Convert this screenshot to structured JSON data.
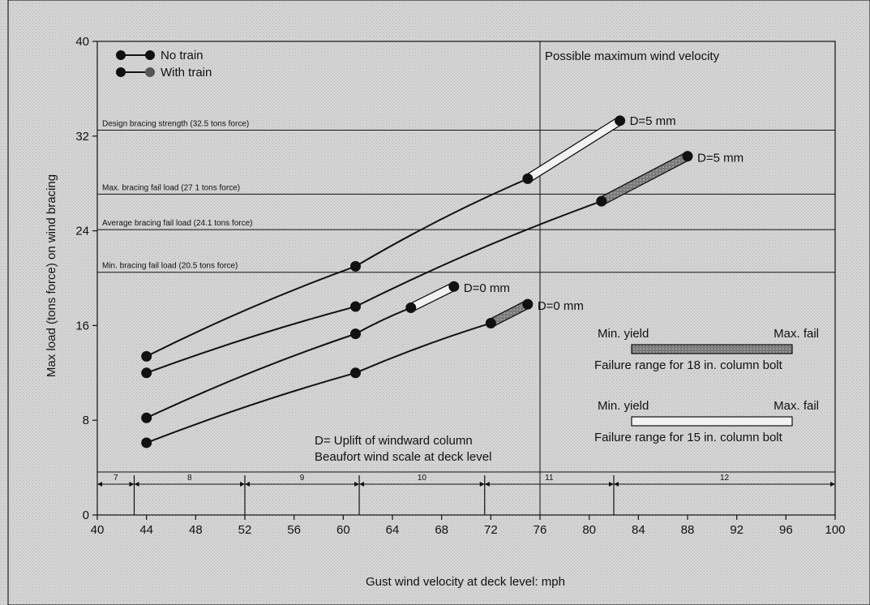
{
  "chart_data": {
    "type": "line",
    "xlabel": "Gust wind velocity at deck level: mph",
    "ylabel": "Max load (tons force) on wind bracing",
    "xlim": [
      40,
      100
    ],
    "ylim": [
      0,
      40
    ],
    "x_ticks": [
      40,
      44,
      48,
      52,
      56,
      60,
      64,
      68,
      72,
      76,
      80,
      84,
      88,
      92,
      96,
      100
    ],
    "y_ticks": [
      0,
      8,
      16,
      24,
      32,
      40
    ],
    "legend": {
      "placement": "top-left",
      "entries": [
        {
          "label": "No train",
          "marker_color": "#111111"
        },
        {
          "label": "With train",
          "marker_color": "#555555"
        }
      ]
    },
    "reference_lines": [
      {
        "label": "Design bracing strength (32.5 tons force)",
        "y": 32.5
      },
      {
        "label": "Max. bracing fail load (27 1 tons force)",
        "y": 27.1
      },
      {
        "label": "Average bracing fail load (24.1 tons force)",
        "y": 24.1
      },
      {
        "label": "Min. bracing fail load (20.5 tons force)",
        "y": 20.5
      }
    ],
    "vertical_line": {
      "label": "Possible maximum wind velocity",
      "x": 76
    },
    "series": [
      {
        "points": [
          {
            "x": 44,
            "y": 13.4
          },
          {
            "x": 61,
            "y": 21.0
          },
          {
            "x": 75,
            "y": 28.4
          },
          {
            "x": 82.5,
            "y": 33.3
          }
        ],
        "bolt_segment": {
          "from": 2,
          "to": 3,
          "type": "light"
        },
        "end_label": "D=5 mm"
      },
      {
        "points": [
          {
            "x": 44,
            "y": 12.0
          },
          {
            "x": 61,
            "y": 17.6
          },
          {
            "x": 81,
            "y": 26.5
          },
          {
            "x": 88,
            "y": 30.3
          }
        ],
        "bolt_segment": {
          "from": 2,
          "to": 3,
          "type": "dark"
        },
        "end_label": "D=5 mm"
      },
      {
        "points": [
          {
            "x": 44,
            "y": 8.2
          },
          {
            "x": 61,
            "y": 15.3
          },
          {
            "x": 65.5,
            "y": 17.5
          },
          {
            "x": 69,
            "y": 19.3
          }
        ],
        "bolt_segment": {
          "from": 2,
          "to": 3,
          "type": "light"
        },
        "end_label": "D=0 mm"
      },
      {
        "points": [
          {
            "x": 44,
            "y": 6.1
          },
          {
            "x": 61,
            "y": 12.0
          },
          {
            "x": 72,
            "y": 16.2
          },
          {
            "x": 75,
            "y": 17.8
          }
        ],
        "bolt_segment": {
          "from": 2,
          "to": 3,
          "type": "dark"
        },
        "end_label": "D=0 mm"
      }
    ],
    "failure_ranges": [
      {
        "min_label": "Min. yield",
        "max_label": "Max. fail",
        "caption": "Failure range for 18 in. column bolt",
        "type": "dark"
      },
      {
        "min_label": "Min. yield",
        "max_label": "Max. fail",
        "caption": "Failure range for 15 in. column bolt",
        "type": "light"
      }
    ],
    "annotation_lines": [
      "D= Uplift of windward column",
      "Beaufort wind scale at deck level"
    ],
    "beaufort_scale": [
      {
        "label": "7",
        "from": 40,
        "to": 43
      },
      {
        "label": "8",
        "from": 43,
        "to": 52
      },
      {
        "label": "9",
        "from": 52,
        "to": 61.3
      },
      {
        "label": "10",
        "from": 61.3,
        "to": 71.5
      },
      {
        "label": "11",
        "from": 71.5,
        "to": 82
      },
      {
        "label": "12",
        "from": 82,
        "to": 100
      }
    ],
    "colors": {
      "line": "#111111",
      "light_bar": "#f2f2f2",
      "dark_bar": "#7a7a7a",
      "background": "#d4d4d4"
    }
  }
}
